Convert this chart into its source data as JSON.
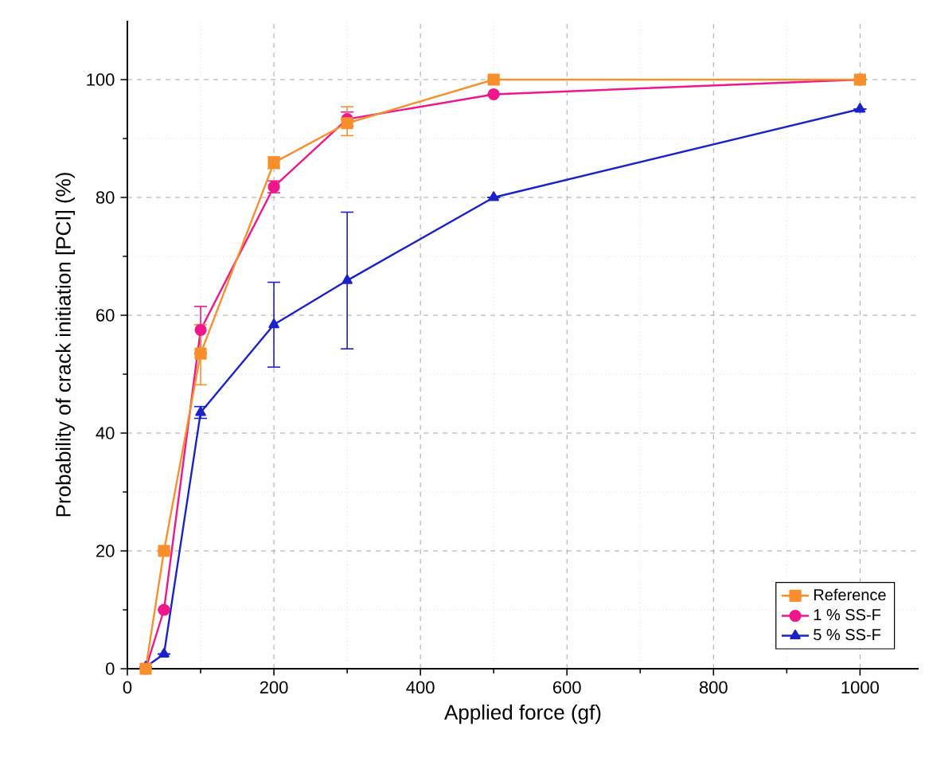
{
  "chart_data": {
    "type": "line",
    "xlabel": "Applied force (gf)",
    "ylabel": "Probability of crack initiation [PCI] (%)",
    "xlim": [
      0,
      1080
    ],
    "ylim": [
      0,
      110
    ],
    "xticks": [
      0,
      200,
      400,
      600,
      800,
      1000
    ],
    "yticks": [
      0,
      20,
      40,
      60,
      80,
      100
    ],
    "grid": true,
    "legend": "bottom right",
    "x": [
      25,
      50,
      100,
      200,
      300,
      500,
      1000
    ],
    "series": [
      {
        "name": "Reference",
        "color": "#f7902c",
        "marker": "square",
        "values": [
          0,
          20,
          53.5,
          85.9,
          92.6,
          100,
          100
        ],
        "errors": [
          null,
          null,
          [
            48.2,
            58.4
          ],
          1,
          [
            90.5,
            95.4
          ],
          null,
          null
        ]
      },
      {
        "name": "1 % SS-F",
        "color": "#f0168c",
        "marker": "circle",
        "values": [
          0,
          10,
          57.5,
          81.8,
          93.3,
          97.5,
          100
        ],
        "errors": [
          null,
          null,
          4,
          1,
          1.2,
          null,
          null
        ]
      },
      {
        "name": "5 % SS-F",
        "color": "#1a22c8",
        "marker": "triangle",
        "values": [
          0.3,
          2.5,
          43.5,
          58.4,
          65.9,
          80,
          95
        ],
        "errors": [
          null,
          null,
          1,
          7.2,
          11.6,
          null,
          null
        ]
      }
    ]
  }
}
